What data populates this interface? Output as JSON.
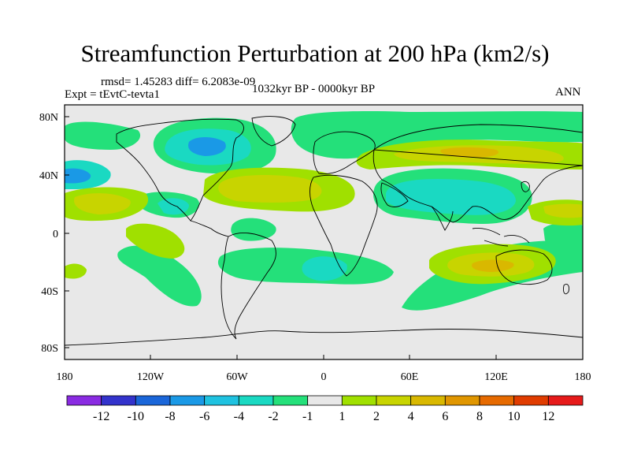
{
  "title": "Streamfunction Perturbation at 200 hPa (km2/s)",
  "stats": "rmsd= 1.45283 diff= 6.2083e-09",
  "experiment": "Expt = tEvtC-tevta1",
  "period": "1032kyr BP - 0000kyr BP",
  "season": "ANN",
  "lat_labels": [
    "80N",
    "40N",
    "0",
    "40S",
    "80S"
  ],
  "lon_labels": [
    "180",
    "120W",
    "60W",
    "0",
    "60E",
    "120E",
    "180"
  ],
  "colorbar": {
    "labels": [
      "-12",
      "-10",
      "-8",
      "-6",
      "-4",
      "-2",
      "-1",
      "1",
      "2",
      "4",
      "6",
      "8",
      "10",
      "12"
    ],
    "colors": [
      "#8a2be2",
      "#3333cc",
      "#1a66d9",
      "#1a99e6",
      "#1fc2e0",
      "#1ad9c2",
      "#24e07a",
      "#e8e8e8",
      "#a0e000",
      "#c8d400",
      "#d9b800",
      "#e09600",
      "#e66a00",
      "#e03c00",
      "#e61a1a"
    ]
  },
  "colors": {
    "background": "#e8e8e8",
    "positive_low": "#a0e000",
    "positive_mid": "#c8c010",
    "positive_high": "#e0a000",
    "negative_low": "#24e07a",
    "negative_mid": "#1ad9c2",
    "negative_high": "#1a99e6"
  }
}
